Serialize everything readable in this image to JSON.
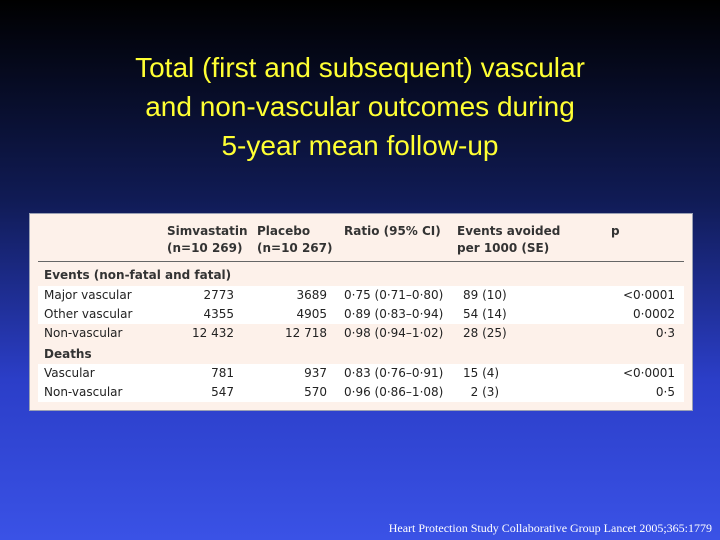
{
  "slide": {
    "title_lines": [
      "Total (first and subsequent) vascular",
      "and non-vascular outcomes during",
      "5-year mean follow-up"
    ],
    "citation": "Heart Protection Study Collaborative Group Lancet 2005;365:1779"
  },
  "table": {
    "headers": {
      "simvastatin": [
        "Simvastatin",
        "(n=10 269)"
      ],
      "placebo": [
        "Placebo",
        "(n=10 267)"
      ],
      "ratio": "Ratio  (95% CI)",
      "events_avoided": [
        "Events avoided",
        "per 1000 (SE)"
      ],
      "p": "p"
    },
    "sections": [
      {
        "title": "Events (non-fatal and fatal)",
        "rows": [
          {
            "label": "Major vascular",
            "simvastatin": "2773",
            "placebo": "3689",
            "ratio": "0·75 (0·71–0·80)",
            "avoided": "89 (10)",
            "p": "<0·0001"
          },
          {
            "label": "Other vascular",
            "simvastatin": "4355",
            "placebo": "4905",
            "ratio": "0·89 (0·83–0·94)",
            "avoided": "54 (14)",
            "p": "0·0002"
          },
          {
            "label": "Non-vascular",
            "simvastatin": "12 432",
            "placebo": "12 718",
            "ratio": "0·98 (0·94–1·02)",
            "avoided": "28  (25)",
            "p": "0·3"
          }
        ]
      },
      {
        "title": "Deaths",
        "rows": [
          {
            "label": "Vascular",
            "simvastatin": "781",
            "placebo": "937",
            "ratio": "0·83 (0·76–0·91)",
            "avoided": "15 (4)",
            "p": "<0·0001"
          },
          {
            "label": "Non-vascular",
            "simvastatin": "547",
            "placebo": "570",
            "ratio": "0·96 (0·86–1·08)",
            "avoided": "  2 (3)",
            "p": "0·5"
          }
        ]
      }
    ]
  }
}
